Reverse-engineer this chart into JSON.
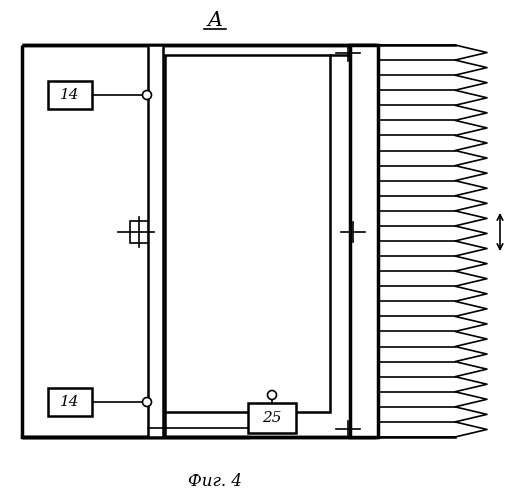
{
  "bg_color": "#ffffff",
  "line_color": "#000000",
  "title": "A",
  "caption": "Фиг. 4",
  "fig_width": 5.2,
  "fig_height": 5.0,
  "dpi": 100
}
